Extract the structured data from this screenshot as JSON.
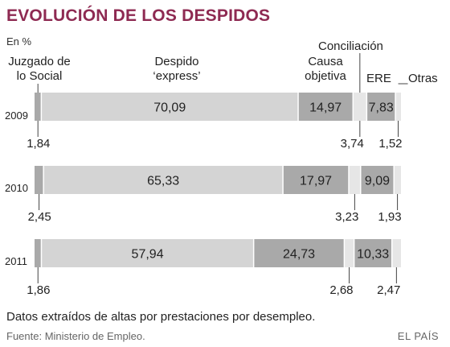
{
  "title": "EVOLUCIÓN DE LOS DESPIDOS",
  "unit": "En %",
  "footnote": "Datos extraídos de altas por prestaciones por desempleo.",
  "source": "Fuente: Ministerio de Empleo.",
  "brand": "EL PAÍS",
  "colors": {
    "title": "#8e2a52",
    "light": "#d4d4d4",
    "dark": "#a9a9a9",
    "pale": "#e6e6e6",
    "divider": "#ffffff",
    "leader": "#444444"
  },
  "chart_data": {
    "type": "bar",
    "stacked": true,
    "orientation": "horizontal",
    "categories": [
      "2009",
      "2010",
      "2011"
    ],
    "series": [
      {
        "name": "Juzgado de lo Social",
        "values": [
          1.84,
          2.45,
          1.86
        ]
      },
      {
        "name": "Despido ‘express’",
        "values": [
          70.09,
          65.33,
          57.94
        ]
      },
      {
        "name": "Causa objetiva",
        "values": [
          14.97,
          17.97,
          24.73
        ]
      },
      {
        "name": "Conciliación",
        "values": [
          3.74,
          3.23,
          2.68
        ]
      },
      {
        "name": "ERE",
        "values": [
          7.83,
          9.09,
          10.33
        ]
      },
      {
        "name": "Otras",
        "values": [
          1.52,
          1.93,
          2.47
        ]
      }
    ],
    "value_labels": {
      "Juzgado de lo Social": [
        "1,84",
        "2,45",
        "1,86"
      ],
      "Despido ‘express’": [
        "70,09",
        "65,33",
        "57,94"
      ],
      "Causa objetiva": [
        "14,97",
        "17,97",
        "24,73"
      ],
      "Conciliación": [
        "3,74",
        "3,23",
        "2,68"
      ],
      "ERE": [
        "7,83",
        "9,09",
        "10,33"
      ],
      "Otras": [
        "1,52",
        "1,93",
        "2,47"
      ]
    },
    "xlim": [
      0,
      100
    ],
    "grid": false,
    "legend": "top"
  }
}
